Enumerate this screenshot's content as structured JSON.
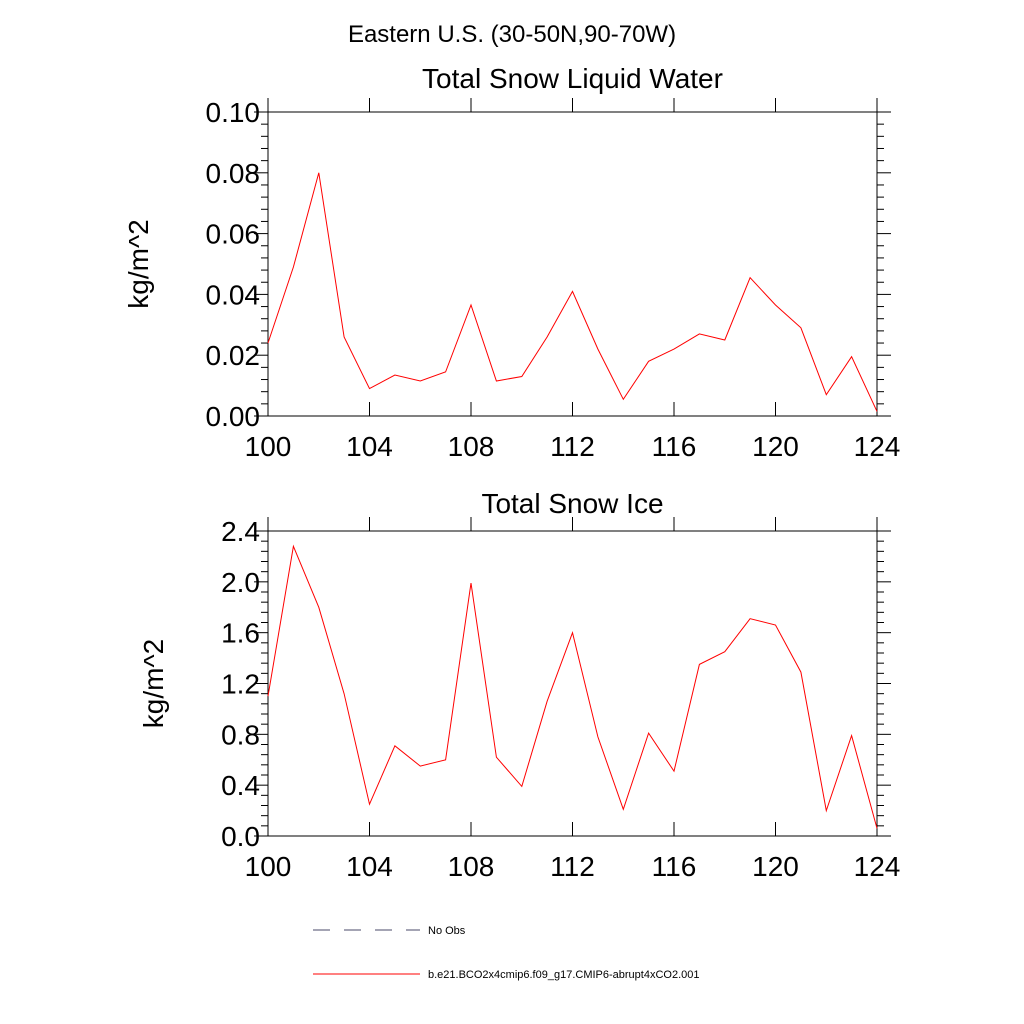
{
  "title": "Eastern U.S. (30-50N,90-70W)",
  "chart_data": [
    {
      "type": "line",
      "title": "Total Snow Liquid Water",
      "xlabel": "",
      "ylabel": "kg/m^2",
      "xlim": [
        100,
        124
      ],
      "ylim": [
        0,
        0.1
      ],
      "xticks": [
        100,
        104,
        108,
        112,
        116,
        120,
        124
      ],
      "xtick_labels": [
        "100",
        "104",
        "108",
        "112",
        "116",
        "120",
        "124"
      ],
      "yticks": [
        0,
        0.02,
        0.04,
        0.06,
        0.08,
        0.1
      ],
      "ytick_labels": [
        "0.00",
        "0.02",
        "0.04",
        "0.06",
        "0.08",
        "0.10"
      ],
      "ylabel_precision": 2,
      "series": [
        {
          "name": "b.e21.BCO2x4cmip6.f09_g17.CMIP6-abrupt4xCO2.001",
          "color": "#ff0000",
          "x": [
            100,
            101,
            102,
            103,
            104,
            105,
            106,
            107,
            108,
            109,
            110,
            111,
            112,
            113,
            114,
            115,
            116,
            117,
            118,
            119,
            120,
            121,
            122,
            123,
            124
          ],
          "values": [
            0.024,
            0.049,
            0.08,
            0.026,
            0.009,
            0.0135,
            0.0115,
            0.0145,
            0.0365,
            0.0115,
            0.013,
            0.026,
            0.041,
            0.022,
            0.0055,
            0.018,
            0.022,
            0.027,
            0.025,
            0.0455,
            0.0365,
            0.029,
            0.007,
            0.0195,
            0.0015
          ]
        }
      ]
    },
    {
      "type": "line",
      "title": "Total Snow Ice",
      "xlabel": "",
      "ylabel": "kg/m^2",
      "xlim": [
        100,
        124
      ],
      "ylim": [
        0,
        2.4
      ],
      "xticks": [
        100,
        104,
        108,
        112,
        116,
        120,
        124
      ],
      "xtick_labels": [
        "100",
        "104",
        "108",
        "112",
        "116",
        "120",
        "124"
      ],
      "yticks": [
        0,
        0.4,
        0.8,
        1.2,
        1.6,
        2.0,
        2.4
      ],
      "ytick_labels": [
        "0.0",
        "0.4",
        "0.8",
        "1.2",
        "1.6",
        "2.0",
        "2.4"
      ],
      "ylabel_precision": 1,
      "series": [
        {
          "name": "b.e21.BCO2x4cmip6.f09_g17.CMIP6-abrupt4xCO2.001",
          "color": "#ff0000",
          "x": [
            100,
            101,
            102,
            103,
            104,
            105,
            106,
            107,
            108,
            109,
            110,
            111,
            112,
            113,
            114,
            115,
            116,
            117,
            118,
            119,
            120,
            121,
            122,
            123,
            124
          ],
          "values": [
            1.1,
            2.28,
            1.8,
            1.12,
            0.25,
            0.71,
            0.55,
            0.6,
            1.99,
            0.62,
            0.39,
            1.06,
            1.6,
            0.78,
            0.21,
            0.81,
            0.51,
            1.35,
            1.45,
            1.71,
            1.66,
            1.29,
            0.2,
            0.79,
            0.06
          ]
        }
      ]
    }
  ],
  "legend": [
    {
      "label": "No Obs",
      "style": "dashed",
      "color": "#4a4a6a"
    },
    {
      "label": "b.e21.BCO2x4cmip6.f09_g17.CMIP6-abrupt4xCO2.001",
      "style": "solid",
      "color": "#ff0000"
    }
  ]
}
